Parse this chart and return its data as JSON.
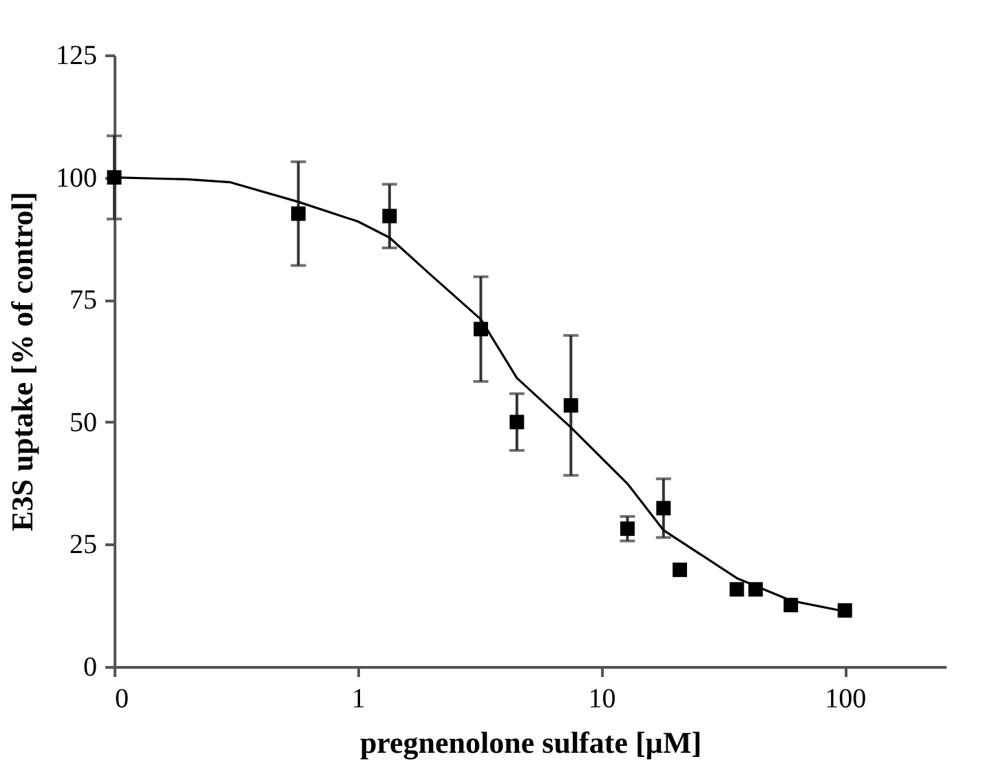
{
  "chart_data": {
    "type": "scatter",
    "xlabel": "pregnenolone sulfate [µM]",
    "ylabel": "E3S uptake [% of control]",
    "log": "x",
    "xlim": [
      0.1,
      260
    ],
    "xticks": [
      {
        "value": 0.1,
        "label": "0"
      },
      1,
      10,
      100
    ],
    "ylim": [
      0,
      125
    ],
    "yticks": [
      0,
      25,
      50,
      75,
      100,
      125
    ],
    "grid": false,
    "series": [
      {
        "marker": "square",
        "color": "#000000",
        "x": [
          0.1,
          0.57,
          1.35,
          3.2,
          4.5,
          7.5,
          12.8,
          18,
          21,
          36,
          43,
          60,
          100
        ],
        "values": [
          100,
          92.6,
          92.1,
          69,
          50,
          53.4,
          28.2,
          32.4,
          19.8,
          15.8,
          15.8,
          12.6,
          11.5
        ],
        "errors": [
          8.5,
          10.6,
          6.5,
          10.7,
          5.8,
          14.3,
          2.5,
          6,
          null,
          null,
          null,
          null,
          null
        ]
      },
      {
        "type": "line",
        "marker": "none",
        "line_style": "solid",
        "color": "#000000",
        "x": [
          0.1,
          0.2,
          0.3,
          0.57,
          1,
          1.35,
          2,
          3.2,
          4.5,
          7.5,
          12.8,
          18,
          36,
          60,
          100
        ],
        "values": [
          100,
          99.6,
          99,
          95,
          91,
          87.7,
          80,
          71,
          59,
          48.9,
          37.4,
          27.9,
          18.1,
          13.5,
          11.3
        ]
      }
    ]
  }
}
